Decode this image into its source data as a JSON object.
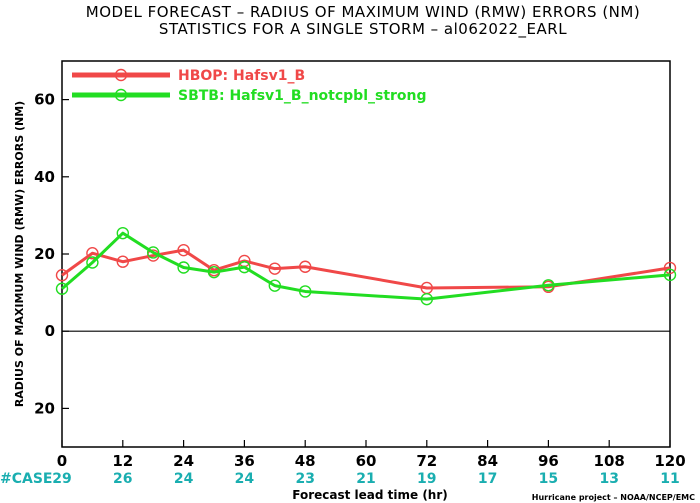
{
  "chart_data": {
    "type": "line",
    "title": "MODEL FORECAST – RADIUS OF MAXIMUM WIND (RMW) ERRORS (NM)",
    "subtitle": "STATISTICS FOR A SINGLE STORM – al062022_EARL",
    "xlabel": "Forecast lead time (hr)",
    "ylabel": "RADIUS OF MAXIMUM WIND (RMW) ERRORS (NM)",
    "xlim": [
      0,
      120
    ],
    "ylim": [
      -30,
      70
    ],
    "x_ticks": [
      0,
      12,
      24,
      36,
      48,
      60,
      72,
      84,
      96,
      108,
      120
    ],
    "y_ticks": [
      -20,
      0,
      20,
      40,
      60
    ],
    "y_tick_labels": [
      "20",
      "0",
      "20",
      "40",
      "60"
    ],
    "zero_line": true,
    "grid": false,
    "legend_position": "top-left",
    "series": [
      {
        "name": "HBOP: Hafsv1_B",
        "color": "#f04848",
        "points": [
          [
            0,
            14.5
          ],
          [
            6,
            20.2
          ],
          [
            12,
            18
          ],
          [
            18,
            19.6
          ],
          [
            24,
            21
          ],
          [
            30,
            15.8
          ],
          [
            36,
            18.2
          ],
          [
            42,
            16.2
          ],
          [
            48,
            16.7
          ],
          [
            72,
            11.2
          ],
          [
            96,
            11.5
          ],
          [
            120,
            16.4
          ]
        ]
      },
      {
        "name": "SBTB: Hafsv1_B_notcpbl_strong",
        "color": "#22dd22",
        "points": [
          [
            0,
            11
          ],
          [
            6,
            17.8
          ],
          [
            12,
            25.4
          ],
          [
            18,
            20.4
          ],
          [
            24,
            16.5
          ],
          [
            30,
            15.3
          ],
          [
            36,
            16.6
          ],
          [
            42,
            11.8
          ],
          [
            48,
            10.3
          ],
          [
            72,
            8.3
          ],
          [
            96,
            11.9
          ],
          [
            120,
            14.6
          ]
        ]
      }
    ],
    "case_label": "#CASE",
    "case_counts": [
      {
        "x": 0,
        "count": "29"
      },
      {
        "x": 12,
        "count": "26"
      },
      {
        "x": 24,
        "count": "24"
      },
      {
        "x": 36,
        "count": "24"
      },
      {
        "x": 48,
        "count": "23"
      },
      {
        "x": 60,
        "count": "21"
      },
      {
        "x": 72,
        "count": "19"
      },
      {
        "x": 84,
        "count": "17"
      },
      {
        "x": 96,
        "count": "15"
      },
      {
        "x": 108,
        "count": "13"
      },
      {
        "x": 120,
        "count": "11"
      }
    ],
    "credit": "Hurricane project – NOAA/NCEP/EMC",
    "case_color": "#1aaeb0"
  }
}
